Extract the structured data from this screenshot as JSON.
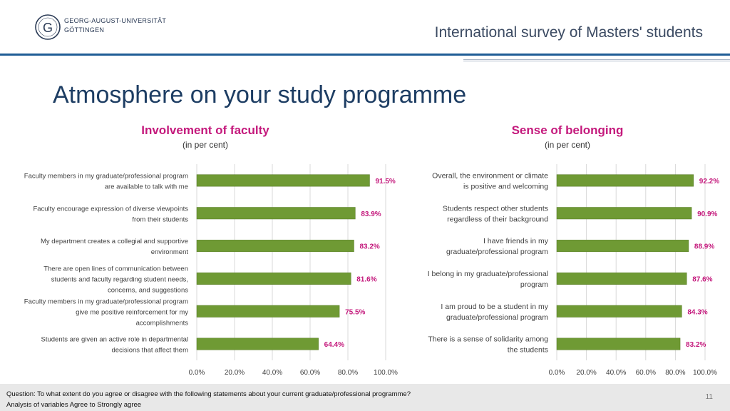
{
  "header": {
    "university_line1": "GEORG-AUGUST-UNIVERSITÄT",
    "university_line2": "GÖTTINGEN",
    "title": "International survey of Masters' students"
  },
  "page": {
    "title": "Atmosphere on your study programme",
    "number": "11"
  },
  "footer": {
    "question": "Question: To what extent do you agree or disagree with the following statements about your current graduate/professional programme?",
    "analysis": "Analysis of variables Agree to Strongly agree"
  },
  "colors": {
    "bar": "#6f9a34",
    "value_label": "#c4197c",
    "grid": "#d9d9d9",
    "label": "#404040"
  },
  "chart_data": [
    {
      "type": "bar",
      "orientation": "horizontal",
      "title": "Involvement of faculty",
      "subtitle": "(in per cent)",
      "categories": [
        [
          "Faculty members in my graduate/professional program",
          "are available to talk with me"
        ],
        [
          "Faculty encourage expression of diverse viewpoints",
          "from their students"
        ],
        [
          "My department creates a collegial and supportive",
          "environment"
        ],
        [
          "There are open lines of communication between",
          "students and faculty regarding student needs,",
          "concerns, and suggestions"
        ],
        [
          "Faculty members in my graduate/professional program",
          "give me positive reinforcement for my",
          "accomplishments"
        ],
        [
          "Students are given an active role in departmental",
          "decisions that affect them"
        ]
      ],
      "values": [
        91.5,
        83.9,
        83.2,
        81.6,
        75.5,
        64.4
      ],
      "value_labels": [
        "91.5%",
        "83.9%",
        "83.2%",
        "81.6%",
        "75.5%",
        "64.4%"
      ],
      "xlim": [
        0,
        100
      ],
      "ticks": [
        0,
        20,
        40,
        60,
        80,
        100
      ],
      "tick_labels": [
        "0.0%",
        "20.0%",
        "40.0%",
        "60.0%",
        "80.0%",
        "100.0%"
      ]
    },
    {
      "type": "bar",
      "orientation": "horizontal",
      "title": "Sense of belonging",
      "subtitle": "(in per cent)",
      "categories": [
        [
          "Overall, the environment or climate",
          "is positive and welcoming"
        ],
        [
          "Students respect other students",
          "regardless of their background"
        ],
        [
          "I have friends in my",
          "graduate/professional program"
        ],
        [
          "I belong in my graduate/professional",
          "program"
        ],
        [
          "I am proud to be a student in my",
          "graduate/professional program"
        ],
        [
          "There is a sense of solidarity among",
          "the students"
        ]
      ],
      "values": [
        92.2,
        90.9,
        88.9,
        87.6,
        84.3,
        83.2
      ],
      "value_labels": [
        "92.2%",
        "90.9%",
        "88.9%",
        "87.6%",
        "84.3%",
        "83.2%"
      ],
      "xlim": [
        0,
        100
      ],
      "ticks": [
        0,
        20,
        40,
        60,
        80,
        100
      ],
      "tick_labels": [
        "0.0%",
        "20.0%",
        "40.0%",
        "60.0%",
        "80.0%",
        "100.0%"
      ]
    }
  ]
}
